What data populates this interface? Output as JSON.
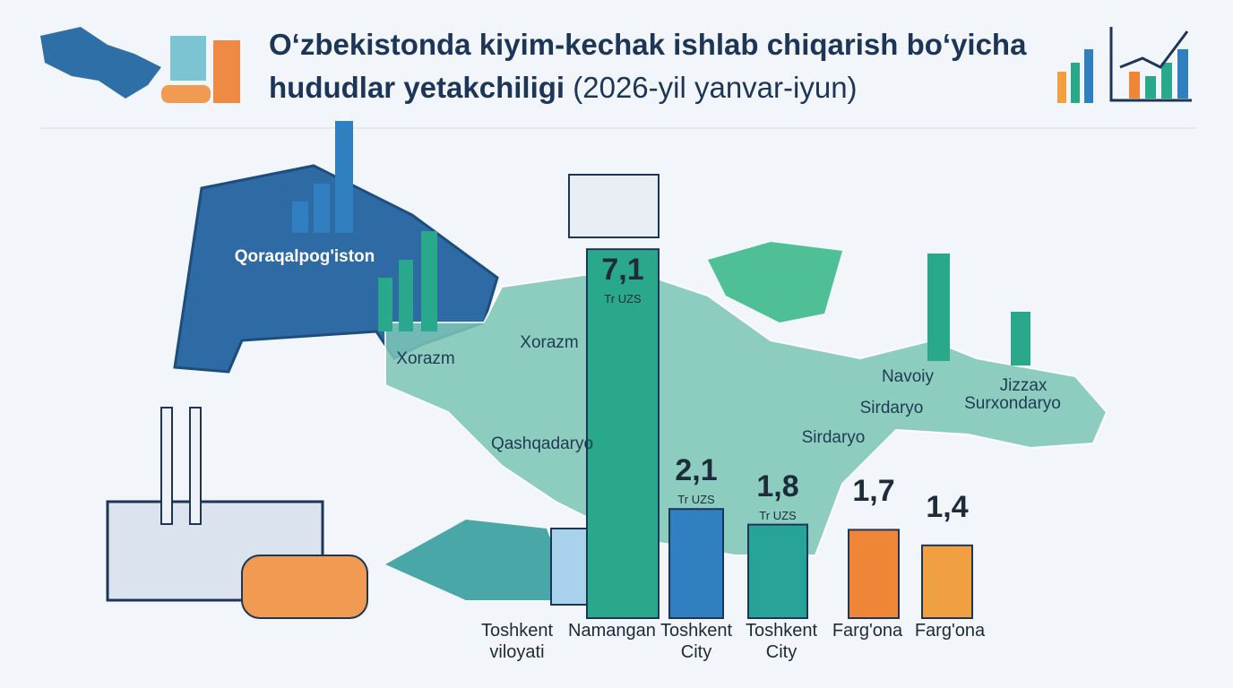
{
  "chart_data": {
    "type": "bar",
    "title": "O‘zbekistonda kiyim-kechak ishlab chiqarish bo‘yicha hududlar yetakchiligi",
    "subtitle": "(2026-yil yanvar-iyun)",
    "categories": [
      "Toshkent viloyati",
      "Namangan",
      "Toshkent City",
      "Toshkent City",
      "Farg'ona",
      "Farg'ona"
    ],
    "values": [
      null,
      7.1,
      2.1,
      1.8,
      1.7,
      1.4
    ],
    "value_labels": [
      null,
      "7,1",
      "2,1",
      "1,8",
      "1,7",
      "1,4"
    ],
    "unit_labels": [
      null,
      "Tr UZS",
      "Tr UZS",
      "Tr UZS",
      null,
      null
    ],
    "colors": [
      null,
      "#2aa88c",
      "#2f7fc1",
      "#27a497",
      "#ee8537",
      "#f0a041"
    ],
    "map_labels": [
      "Qoraqalpog'iston",
      "Xorazm",
      "Xorazm",
      "Qashqadaryo",
      "Navoiy",
      "Sirdaryo",
      "Sirdaryo",
      "Jizzax",
      "Surxondaryo"
    ]
  }
}
